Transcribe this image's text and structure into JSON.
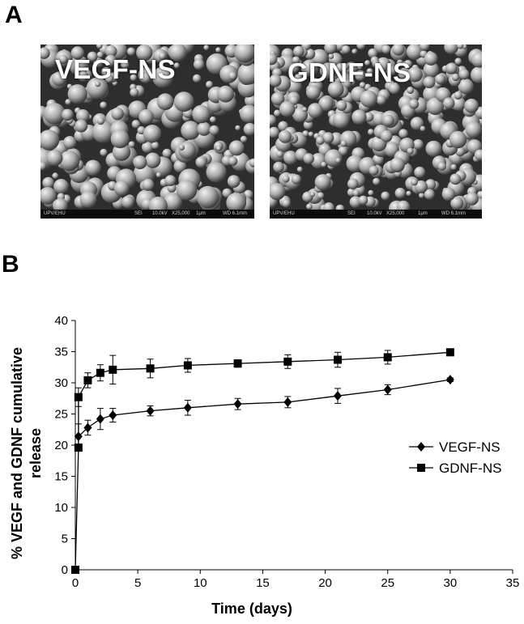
{
  "figure": {
    "panel_a_letter": "A",
    "panel_b_letter": "B"
  },
  "micrographs": [
    {
      "label": "VEGF-NS",
      "footer": [
        "UPV/EHU",
        "SEI",
        "10.0kV",
        "X25,000",
        "1μm",
        "WD 6.1mm"
      ]
    },
    {
      "label": "GDNF-NS",
      "footer": [
        "UPV/EHU",
        "SEI",
        "10.0kV",
        "X25,000",
        "1μm",
        "WD 6.1mm"
      ]
    }
  ],
  "chart_data": {
    "type": "line",
    "title": "",
    "xlabel": "Time (days)",
    "ylabel": "% VEGF and GDNF cumulative release",
    "xlim": [
      0,
      35
    ],
    "ylim": [
      0,
      40
    ],
    "xticks": [
      0,
      5,
      10,
      15,
      20,
      25,
      30,
      35
    ],
    "yticks": [
      0,
      5,
      10,
      15,
      20,
      25,
      30,
      35,
      40
    ],
    "grid": false,
    "legend": "right",
    "series": [
      {
        "name": "VEGF-NS",
        "marker": "diamond",
        "color": "#000000",
        "x": [
          0.25,
          1,
          2,
          3,
          6,
          9,
          13,
          17,
          21,
          25,
          30
        ],
        "y": [
          21.4,
          22.8,
          24.2,
          24.8,
          25.5,
          26.0,
          26.6,
          26.9,
          27.9,
          28.9,
          30.5
        ],
        "err": [
          2.0,
          1.2,
          1.7,
          1.1,
          0.8,
          1.2,
          0.9,
          0.9,
          1.2,
          0.8,
          0.3
        ]
      },
      {
        "name": "GDNF-NS",
        "marker": "square",
        "color": "#000000",
        "x": [
          0,
          0.25,
          0.25,
          1,
          2,
          3,
          6,
          9,
          13,
          17,
          21,
          25,
          30
        ],
        "y": [
          0,
          19.6,
          27.7,
          30.4,
          31.6,
          32.1,
          32.3,
          32.8,
          33.1,
          33.4,
          33.7,
          34.1,
          34.9
        ],
        "err": [
          0,
          0,
          1.5,
          1.2,
          1.3,
          2.3,
          1.5,
          1.1,
          0.6,
          1.1,
          1.2,
          1.1,
          0.2
        ]
      }
    ]
  }
}
